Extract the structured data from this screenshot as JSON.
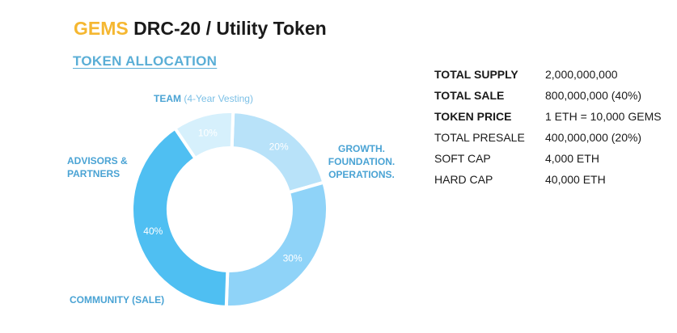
{
  "header": {
    "brand": "GEMS",
    "title": "DRC-20 / Utility Token"
  },
  "section_title": "TOKEN ALLOCATION",
  "labels": {
    "team": "TEAM",
    "team_note": "(4-Year Vesting)",
    "growth_line1": "GROWTH.",
    "growth_line2": "FOUNDATION.",
    "growth_line3": "OPERATIONS.",
    "advisors_line1": "ADVISORS &",
    "advisors_line2": "PARTNERS",
    "community": "COMMUNITY (SALE)"
  },
  "chart_data": {
    "type": "pie",
    "title": "TOKEN ALLOCATION",
    "categories": [
      "TEAM (4-Year Vesting)",
      "GROWTH. FOUNDATION. OPERATIONS.",
      "COMMUNITY (SALE)",
      "ADVISORS & PARTNERS"
    ],
    "values": [
      20,
      30,
      40,
      10
    ],
    "value_labels": [
      "20%",
      "30%",
      "40%",
      "10%"
    ],
    "colors": [
      "#b8e2f9",
      "#8fd3f8",
      "#4fbff2",
      "#d6f0fc"
    ],
    "donut": true
  },
  "token_info": [
    {
      "key": "TOTAL SUPPLY",
      "value": "2,000,000,000",
      "bold": true
    },
    {
      "key": "TOTAL SALE",
      "value": "800,000,000 (40%)",
      "bold": true
    },
    {
      "key": "TOKEN PRICE",
      "value": "1 ETH = 10,000 GEMS",
      "bold": true
    },
    {
      "key": "TOTAL PRESALE",
      "value": "400,000,000 (20%)",
      "bold": false
    },
    {
      "key": "SOFT CAP",
      "value": "4,000 ETH",
      "bold": false
    },
    {
      "key": "HARD CAP",
      "value": "40,000 ETH",
      "bold": false
    }
  ]
}
